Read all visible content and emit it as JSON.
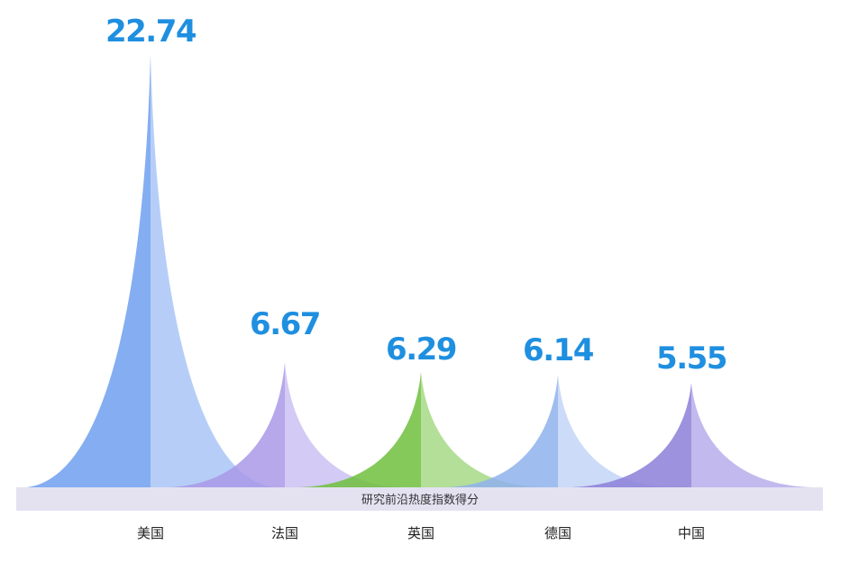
{
  "chart_data": {
    "type": "area",
    "categories": [
      "美国",
      "法国",
      "英国",
      "德国",
      "中国"
    ],
    "values": [
      22.74,
      6.67,
      6.29,
      6.14,
      5.55
    ],
    "value_labels": [
      "22.74",
      "6.67",
      "6.29",
      "6.14",
      "5.55"
    ],
    "baseline_label": "研究前沿热度指数得分",
    "colors": {
      "value_text": "#1f8fe0",
      "band": "#e4e2f1",
      "peaks": [
        "#6f9ff0",
        "#a999e8",
        "#6fbf3d",
        "#8fb2ec",
        "#8b7fd8"
      ],
      "peaks_light": [
        "#a9c6f6",
        "#cbc1f3",
        "#a6d986",
        "#c3d5f6",
        "#b7adeb"
      ]
    },
    "ylim": [
      0,
      24
    ],
    "grid": false,
    "legend": "none"
  }
}
